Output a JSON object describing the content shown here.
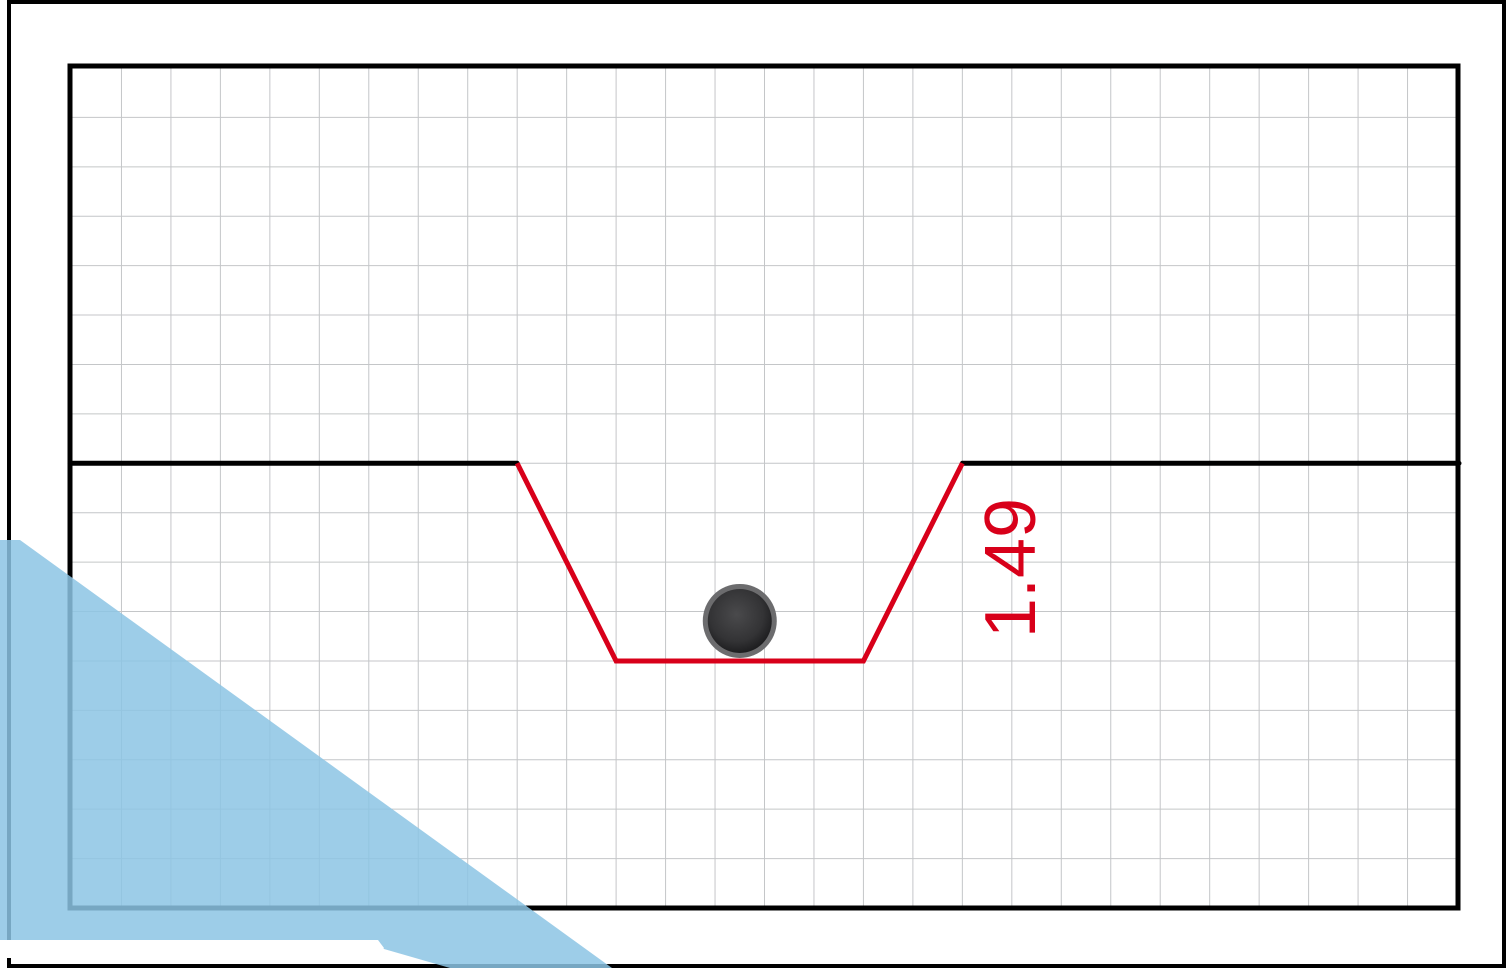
{
  "diagram": {
    "grid": {
      "columns": 28,
      "rows": 17
    },
    "profile": {
      "color": "#d8001a",
      "points": [
        [
          9,
          8
        ],
        [
          11,
          12
        ],
        [
          16,
          12
        ],
        [
          18,
          8
        ]
      ]
    },
    "ground": {
      "row": 8,
      "color": "#000000"
    },
    "ball": {
      "column": 13.5,
      "color": "#3a3a3c"
    },
    "measurement": {
      "label": "1.49"
    },
    "overlay": {
      "color": "#8cc4e4"
    }
  }
}
